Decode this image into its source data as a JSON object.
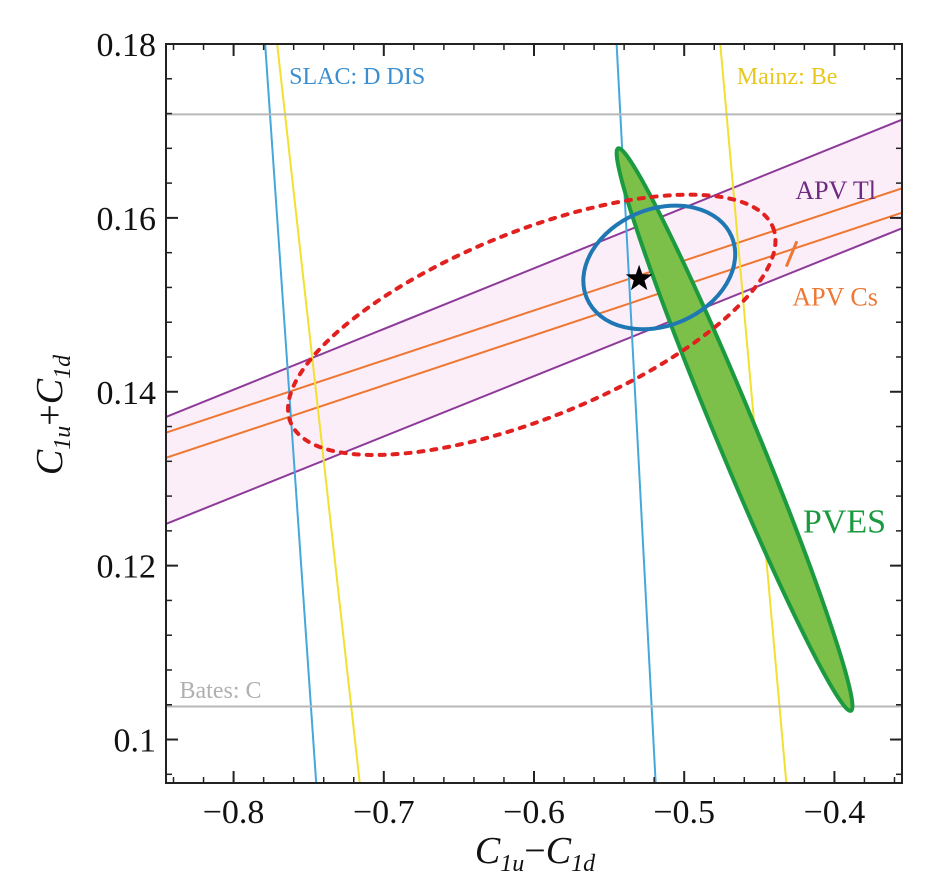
{
  "chart_data": {
    "type": "scatter",
    "xlabel": "C1u−C1d",
    "ylabel": "C1u+C1d",
    "xlabel_parts": {
      "a": "C",
      "a_sub": "1u",
      "op": "−",
      "b": "C",
      "b_sub": "1d"
    },
    "ylabel_parts": {
      "a": "C",
      "a_sub": "1u",
      "op": "+",
      "b": "C",
      "b_sub": "1d"
    },
    "xlim": [
      -0.845,
      -0.355
    ],
    "ylim": [
      0.095,
      0.18
    ],
    "x_ticks": [
      {
        "value": -0.8,
        "label": "−0.8"
      },
      {
        "value": -0.7,
        "label": "−0.7"
      },
      {
        "value": -0.6,
        "label": "−0.6"
      },
      {
        "value": -0.5,
        "label": "−0.5"
      },
      {
        "value": -0.4,
        "label": "−0.4"
      }
    ],
    "y_ticks": [
      {
        "value": 0.18,
        "label": "0.18"
      },
      {
        "value": 0.16,
        "label": "0.16"
      },
      {
        "value": 0.14,
        "label": "0.14"
      },
      {
        "value": 0.12,
        "label": "0.12"
      },
      {
        "value": 0.1,
        "label": "0.1"
      }
    ],
    "grid": false,
    "bands": [
      {
        "name": "APV Tl",
        "color": "#8e3a9a",
        "fill": "#fbeef8",
        "lower": [
          [
            -0.845,
            0.1248
          ],
          [
            -0.355,
            0.1588
          ]
        ],
        "upper": [
          [
            -0.845,
            0.1371
          ],
          [
            -0.355,
            0.1713
          ]
        ]
      },
      {
        "name": "APV Cs",
        "color": "#ee7733",
        "lower": [
          [
            -0.845,
            0.1324
          ],
          [
            -0.355,
            0.1606
          ]
        ],
        "upper": [
          [
            -0.845,
            0.1353
          ],
          [
            -0.355,
            0.1634
          ]
        ]
      }
    ],
    "line_pairs": [
      {
        "name": "SLAC: D DIS",
        "color": "#44a8dd",
        "lines": [
          [
            [
              -0.779,
              0.18
            ],
            [
              -0.745,
              0.095
            ]
          ],
          [
            [
              -0.545,
              0.18
            ],
            [
              -0.519,
              0.095
            ]
          ]
        ]
      },
      {
        "name": "Mainz: Be",
        "color": "#f2e030",
        "lines": [
          [
            [
              -0.771,
              0.18
            ],
            [
              -0.716,
              0.095
            ]
          ],
          [
            [
              -0.476,
              0.18
            ],
            [
              -0.432,
              0.095
            ]
          ]
        ]
      }
    ],
    "hlines": [
      {
        "name": "Bates: C",
        "color": "#b8b8b8",
        "y": 0.1038
      },
      {
        "name": "",
        "color": "#b8b8b8",
        "y": 0.1719
      }
    ],
    "ellipses": [
      {
        "name": "PVES",
        "fill": "#7cc04a",
        "stroke": "#1c9a40",
        "center": [
          -0.467,
          0.1357
        ],
        "axis_ends": [
          [
            -0.544,
            0.168
          ],
          [
            -0.389,
            0.1033
          ]
        ],
        "half_width": 0.0135
      },
      {
        "name": "",
        "fill": "none",
        "stroke": "#1f78b4",
        "center": [
          -0.5166,
          0.1543
        ],
        "semi_axes": [
          0.0524,
          0.0067
        ],
        "rotation_deg": 23
      },
      {
        "name": "",
        "fill": "none",
        "stroke": "#e22020",
        "dashed": true,
        "center": [
          -0.6015,
          0.1477
        ],
        "semi_axes": [
          0.1732,
          0.0107
        ],
        "rotation_deg": 22
      }
    ],
    "marker": {
      "shape": "star",
      "x": -0.53,
      "y": 0.153,
      "color": "#000000"
    },
    "annotations": [
      {
        "text": "SLAC: D DIS",
        "x": -0.763,
        "y": 0.1754,
        "color": "#3b8fd0",
        "size": 24
      },
      {
        "text": "Mainz: Be",
        "x": -0.465,
        "y": 0.1754,
        "color": "#e8c820",
        "size": 24
      },
      {
        "text": "APV Tl",
        "x": -0.426,
        "y": 0.1622,
        "color": "#6e2a82",
        "size": 26
      },
      {
        "text": "APV Cs",
        "x": -0.428,
        "y": 0.1499,
        "color": "#ee7733",
        "size": 26
      },
      {
        "text": "PVES",
        "x": -0.421,
        "y": 0.1238,
        "color": "#1c9a40",
        "size": 34
      },
      {
        "text": "Bates: C",
        "x": -0.836,
        "y": 0.1048,
        "color": "#b0b0b0",
        "size": 24
      }
    ]
  }
}
